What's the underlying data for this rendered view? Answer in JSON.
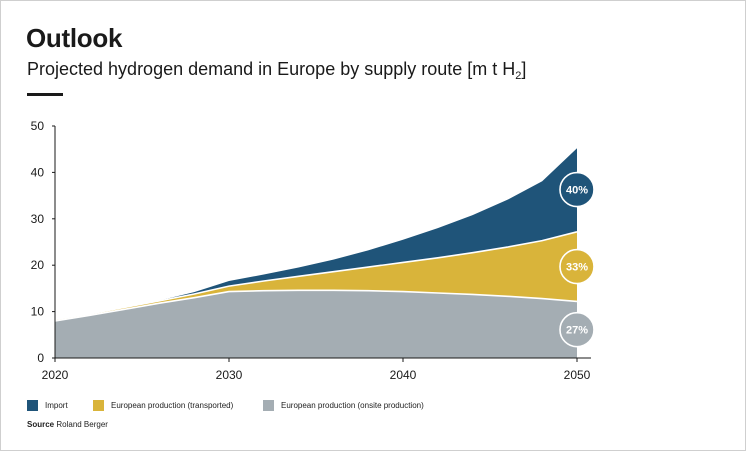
{
  "header": {
    "title": "Outlook",
    "subtitle_main": "Projected hydrogen demand in Europe by supply route [m t H",
    "subtitle_sub": "2",
    "subtitle_end": "]"
  },
  "chart_data": {
    "type": "area",
    "stacked": true,
    "title": "Outlook",
    "subtitle": "Projected hydrogen demand in Europe by supply route [m t H2]",
    "xlabel": "",
    "ylabel": "",
    "x_ticks": [
      "2020",
      "2030",
      "2040",
      "2050"
    ],
    "y_ticks": [
      "0",
      "10",
      "20",
      "30",
      "40",
      "50"
    ],
    "xlim": [
      2020,
      2050
    ],
    "ylim": [
      0,
      50
    ],
    "grid": false,
    "legend_position": "bottom",
    "x": [
      2020,
      2022,
      2024,
      2026,
      2028,
      2030,
      2032,
      2034,
      2036,
      2038,
      2040,
      2042,
      2044,
      2046,
      2048,
      2050
    ],
    "series": [
      {
        "name": "European production (onsite production)",
        "color": "#a4adb3",
        "values": [
          8.0,
          9.2,
          10.5,
          11.8,
          13.0,
          14.3,
          14.5,
          14.6,
          14.6,
          14.5,
          14.3,
          14.0,
          13.7,
          13.3,
          12.8,
          12.2
        ]
      },
      {
        "name": "European production (transported)",
        "color": "#d9b43a",
        "values": [
          0.3,
          0.3,
          0.4,
          0.5,
          0.8,
          1.2,
          2.1,
          3.0,
          4.0,
          5.1,
          6.3,
          7.6,
          9.0,
          10.6,
          12.5,
          15.0
        ]
      },
      {
        "name": "Import",
        "color": "#1f5479",
        "values": [
          0.0,
          0.0,
          0.0,
          0.1,
          0.4,
          1.1,
          1.4,
          1.9,
          2.6,
          3.6,
          4.9,
          6.4,
          8.1,
          10.2,
          12.8,
          18.0
        ]
      }
    ],
    "end_labels": [
      {
        "series": "Import",
        "text": "40%",
        "value_mid": 36.3
      },
      {
        "series": "European production (transported)",
        "text": "33%",
        "value_mid": 19.7
      },
      {
        "series": "European production (onsite production)",
        "text": "27%",
        "value_mid": 6.1
      }
    ],
    "annotation_color": "#ffffff"
  },
  "legend": {
    "items": [
      {
        "label": "Import",
        "color": "#1f5479"
      },
      {
        "label": "European production (transported)",
        "color": "#d9b43a"
      },
      {
        "label": "European production (onsite production)",
        "color": "#a4adb3"
      }
    ]
  },
  "source": {
    "label": "Source",
    "text": "Roland Berger"
  }
}
